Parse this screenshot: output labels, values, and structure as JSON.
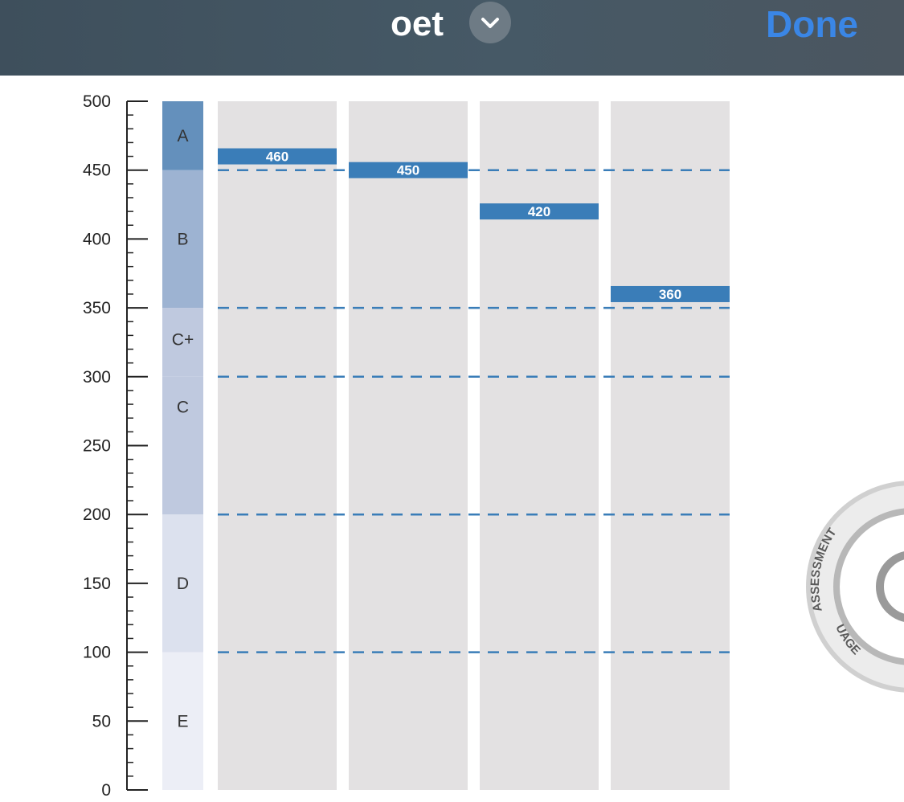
{
  "header": {
    "title": "oet",
    "done_label": "Done"
  },
  "colors": {
    "accent": "#3a86e6",
    "score_bar": "#3a7db8",
    "dashed_line": "#3a7db8",
    "column_bg": "#e3e1e2"
  },
  "icons": {
    "dropdown": "chevron-down-icon"
  },
  "seal": {
    "top_text": "ASSESSMENT",
    "bottom_text": "UAGE"
  },
  "chart_data": {
    "type": "bar",
    "title": "",
    "xlabel": "",
    "ylabel": "",
    "ylim": [
      0,
      500
    ],
    "y_ticks": [
      "0",
      "50",
      "100",
      "150",
      "200",
      "250",
      "300",
      "350",
      "400",
      "450",
      "500"
    ],
    "grade_bands": [
      {
        "label": "E",
        "from": 0,
        "to": 100,
        "color": "#eceef6"
      },
      {
        "label": "D",
        "from": 100,
        "to": 200,
        "color": "#dce1ee"
      },
      {
        "label": "C",
        "from": 200,
        "to": 300,
        "color": "#bfc9df"
      },
      {
        "label": "C+",
        "from": 300,
        "to": 350,
        "color": "#bfc9df"
      },
      {
        "label": "B",
        "from": 350,
        "to": 450,
        "color": "#9db3d2"
      },
      {
        "label": "A",
        "from": 450,
        "to": 500,
        "color": "#6490bc"
      }
    ],
    "thresholds": [
      100,
      200,
      300,
      350,
      450
    ],
    "columns": 4,
    "values": [
      460,
      450,
      420,
      360
    ],
    "value_labels": [
      "460",
      "450",
      "420",
      "360"
    ]
  }
}
